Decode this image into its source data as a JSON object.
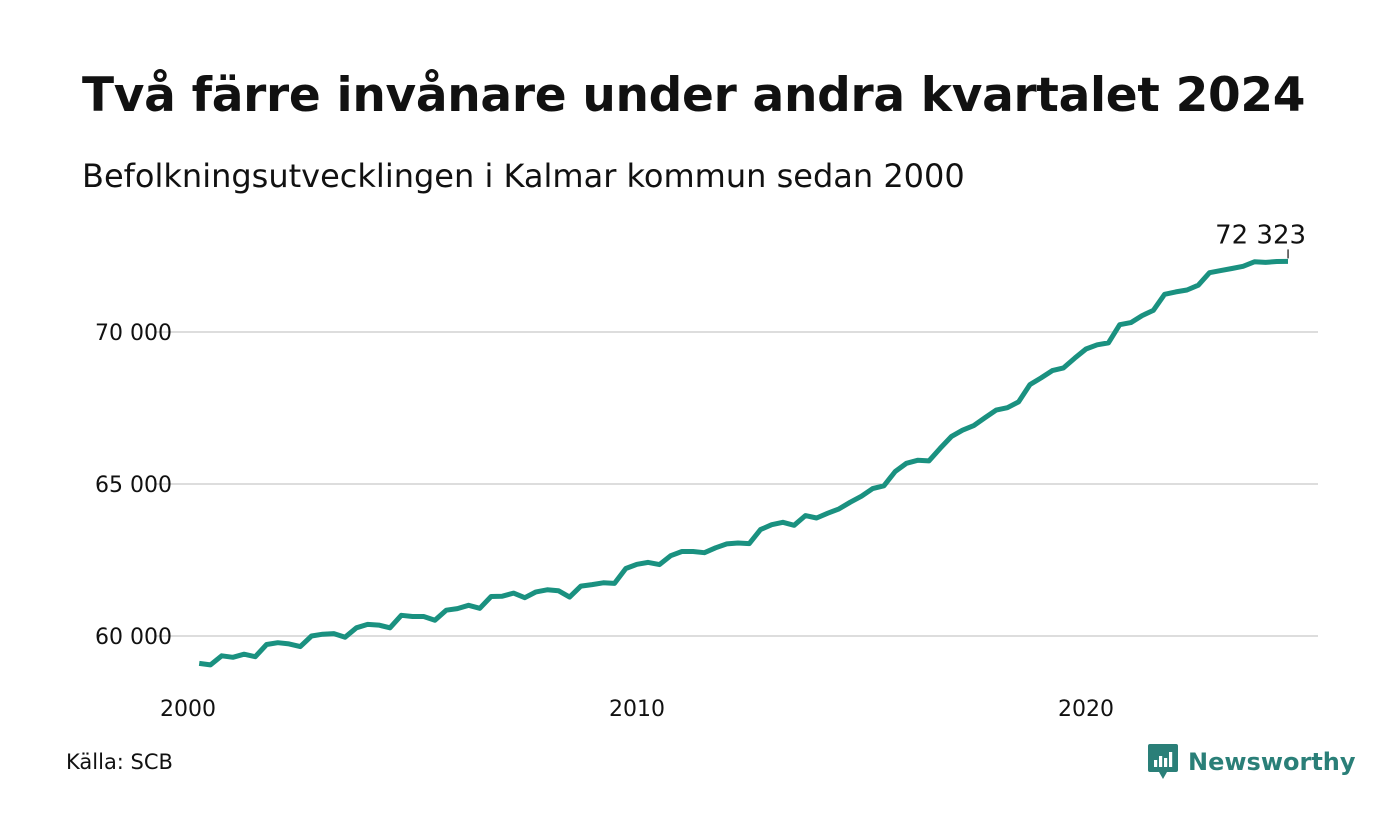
{
  "title": "Två färre invånare under andra kvartalet 2024",
  "subtitle": "Befolkningsutvecklingen i Kalmar kommun sedan 2000",
  "source": "Källa: SCB",
  "brand": {
    "name": "Newsworthy",
    "icon": "newsworthy-chart-bubble-icon",
    "color": "#2a7f78"
  },
  "colors": {
    "line": "#1a9180",
    "grid": "#dddddd",
    "text": "#111111"
  },
  "chart_data": {
    "type": "line",
    "title": "Två färre invånare under andra kvartalet 2024",
    "subtitle": "Befolkningsutvecklingen i Kalmar kommun sedan 2000",
    "xlabel": "",
    "ylabel": "",
    "x_ticks": [
      2000,
      2010,
      2020
    ],
    "x_tick_labels": [
      "2000",
      "2010",
      "2020"
    ],
    "y_ticks": [
      60000,
      65000,
      70000
    ],
    "y_tick_labels": [
      "60 000",
      "65 000",
      "70 000"
    ],
    "xlim": [
      2000,
      2025
    ],
    "ylim": [
      58000,
      73000
    ],
    "grid": "horizontal",
    "end_label": "72 323",
    "series": [
      {
        "x": [
          2000.25,
          2000.5,
          2000.75,
          2001.0,
          2001.25,
          2001.5,
          2001.75,
          2002.0,
          2002.25,
          2002.5,
          2002.75,
          2003.0,
          2003.25,
          2003.5,
          2003.75,
          2004.0,
          2004.25,
          2004.5,
          2004.75,
          2005.0,
          2005.25,
          2005.5,
          2005.75,
          2006.0,
          2006.25,
          2006.5,
          2006.75,
          2007.0,
          2007.25,
          2007.5,
          2007.75,
          2008.0,
          2008.25,
          2008.5,
          2008.75,
          2009.0,
          2009.25,
          2009.5,
          2009.75,
          2010.0,
          2010.25,
          2010.5,
          2010.75,
          2011.0,
          2011.25,
          2011.5,
          2011.75,
          2012.0,
          2012.25,
          2012.5,
          2012.75,
          2013.0,
          2013.25,
          2013.5,
          2013.75,
          2014.0,
          2014.25,
          2014.5,
          2014.75,
          2015.0,
          2015.25,
          2015.5,
          2015.75,
          2016.0,
          2016.25,
          2016.5,
          2016.75,
          2017.0,
          2017.25,
          2017.5,
          2017.75,
          2018.0,
          2018.25,
          2018.5,
          2018.75,
          2019.0,
          2019.25,
          2019.5,
          2019.75,
          2020.0,
          2020.25,
          2020.5,
          2020.75,
          2021.0,
          2021.25,
          2021.5,
          2021.75,
          2022.0,
          2022.25,
          2022.5,
          2022.75,
          2023.0,
          2023.25,
          2023.5,
          2023.75,
          2024.0,
          2024.25,
          2024.5
        ],
        "values": [
          59100,
          59050,
          59350,
          59300,
          59400,
          59320,
          59720,
          59780,
          59740,
          59650,
          60000,
          60060,
          60080,
          59960,
          60270,
          60380,
          60360,
          60270,
          60680,
          60640,
          60640,
          60520,
          60850,
          60900,
          61010,
          60910,
          61300,
          61310,
          61410,
          61260,
          61450,
          61520,
          61490,
          61280,
          61640,
          61690,
          61750,
          61730,
          62220,
          62360,
          62420,
          62350,
          62640,
          62780,
          62780,
          62740,
          62900,
          63030,
          63060,
          63040,
          63500,
          63660,
          63740,
          63640,
          63960,
          63880,
          64040,
          64180,
          64400,
          64600,
          64850,
          64940,
          65410,
          65680,
          65780,
          65760,
          66170,
          66560,
          66770,
          66920,
          67180,
          67430,
          67510,
          67700,
          68270,
          68490,
          68730,
          68820,
          69140,
          69440,
          69580,
          69640,
          70240,
          70310,
          70540,
          70710,
          71240,
          71320,
          71380,
          71540,
          71950,
          72020,
          72090,
          72160,
          72310,
          72290,
          72320,
          72323
        ]
      }
    ]
  }
}
